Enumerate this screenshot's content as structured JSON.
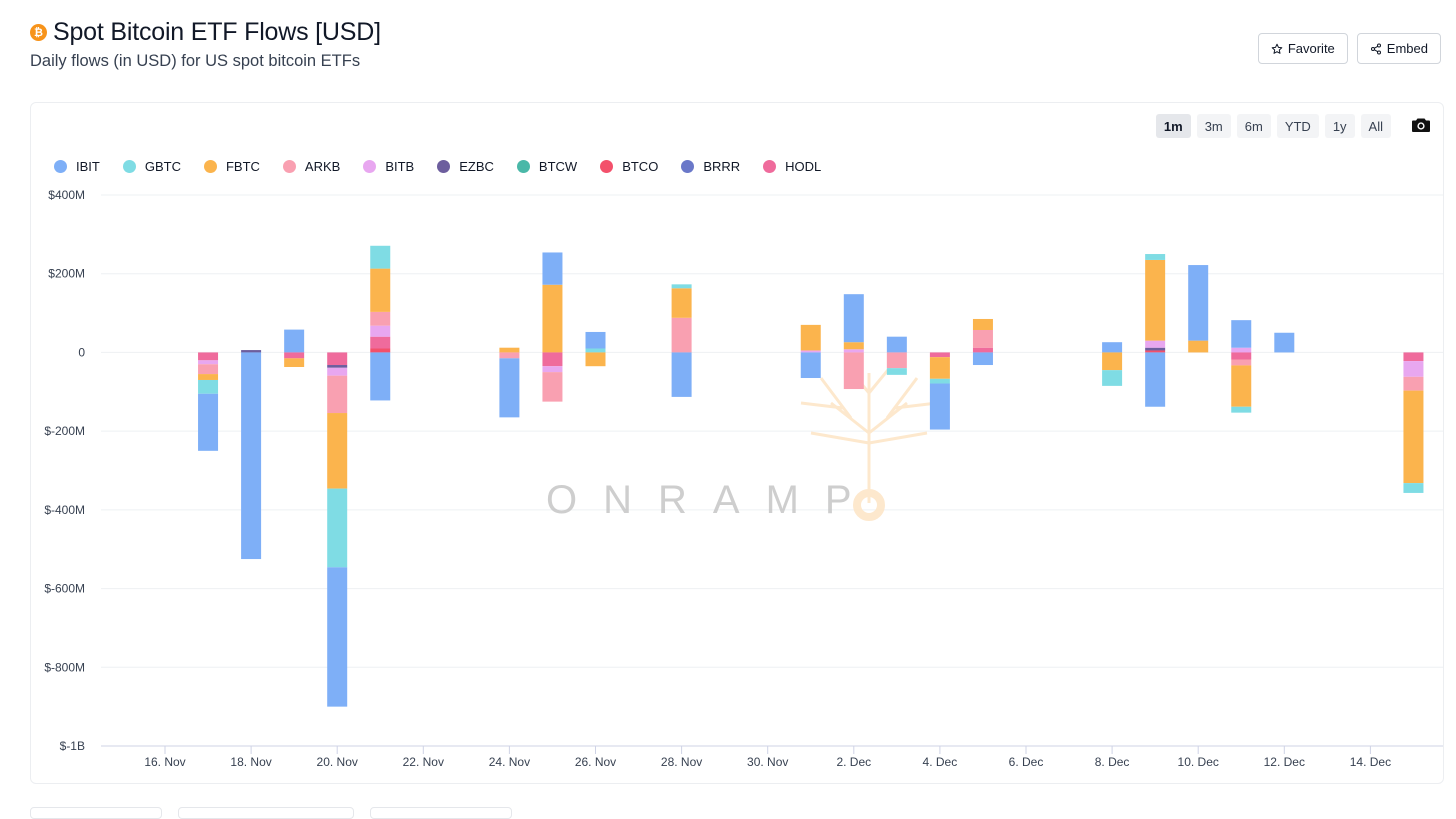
{
  "header": {
    "logo_glyph": "₿",
    "title": "Spot Bitcoin ETF Flows [USD]",
    "subtitle": "Daily flows (in USD) for US spot bitcoin ETFs"
  },
  "actions": {
    "favorite_label": "Favorite",
    "embed_label": "Embed"
  },
  "ranges": [
    "1m",
    "3m",
    "6m",
    "YTD",
    "1y",
    "All"
  ],
  "active_range": "1m",
  "watermark": "ONRAMP",
  "colors": {
    "IBIT": "#7eaff7",
    "GBTC": "#7fdce4",
    "FBTC": "#fbb44d",
    "ARKB": "#f9a0b1",
    "BITB": "#e8a7f0",
    "EZBC": "#6d5e9e",
    "BTCW": "#4ab8a8",
    "BTCO": "#f3506b",
    "BRRR": "#6a78c9",
    "HODL": "#ef6b9c"
  },
  "chart_data": {
    "type": "bar",
    "stacked": true,
    "ylim": [
      -1000,
      400
    ],
    "y_unit": "M USD",
    "yticks": [
      {
        "v": 400,
        "label": "$400M"
      },
      {
        "v": 200,
        "label": "$200M"
      },
      {
        "v": 0,
        "label": "0"
      },
      {
        "v": -200,
        "label": "$-200M"
      },
      {
        "v": -400,
        "label": "$-400M"
      },
      {
        "v": -600,
        "label": "$-600M"
      },
      {
        "v": -800,
        "label": "$-800M"
      },
      {
        "v": -1000,
        "label": "$-1B"
      }
    ],
    "xticks": [
      {
        "d": 0,
        "label": "16. Nov"
      },
      {
        "d": 2,
        "label": "18. Nov"
      },
      {
        "d": 4,
        "label": "20. Nov"
      },
      {
        "d": 6,
        "label": "22. Nov"
      },
      {
        "d": 8,
        "label": "24. Nov"
      },
      {
        "d": 10,
        "label": "26. Nov"
      },
      {
        "d": 12,
        "label": "28. Nov"
      },
      {
        "d": 14,
        "label": "30. Nov"
      },
      {
        "d": 16,
        "label": "2. Dec"
      },
      {
        "d": 18,
        "label": "4. Dec"
      },
      {
        "d": 20,
        "label": "6. Dec"
      },
      {
        "d": 22,
        "label": "8. Dec"
      },
      {
        "d": 24,
        "label": "10. Dec"
      },
      {
        "d": 26,
        "label": "12. Dec"
      },
      {
        "d": 28,
        "label": "14. Dec"
      }
    ],
    "x_start": "16. Nov",
    "x_end": "15. Dec",
    "legend": [
      "IBIT",
      "GBTC",
      "FBTC",
      "ARKB",
      "BITB",
      "EZBC",
      "BTCW",
      "BTCO",
      "BRRR",
      "HODL"
    ],
    "days": [
      {
        "date": "17. Nov",
        "d": 1,
        "flows": {
          "HODL": -20,
          "BITB": -10,
          "ARKB": -25,
          "FBTC": -15,
          "GBTC": -35,
          "IBIT": -145
        }
      },
      {
        "date": "18. Nov",
        "d": 2,
        "flows": {
          "EZBC": 6,
          "IBIT": -525
        }
      },
      {
        "date": "19. Nov",
        "d": 3,
        "flows": {
          "IBIT": 58,
          "HODL": -15,
          "FBTC": -22
        }
      },
      {
        "date": "20. Nov",
        "d": 4,
        "flows": {
          "HODL": -32,
          "EZBC": -7,
          "BITB": -20,
          "ARKB": -95,
          "FBTC": -192,
          "GBTC": -200,
          "IBIT": -354
        }
      },
      {
        "date": "21. Nov",
        "d": 5,
        "flows": {
          "BTCO": 10,
          "HODL": 30,
          "BITB": 28,
          "ARKB": 35,
          "FBTC": 110,
          "GBTC": 58,
          "IBIT": -122
        }
      },
      {
        "date": "24. Nov",
        "d": 8,
        "flows": {
          "FBTC": 12,
          "ARKB": -15,
          "IBIT": -150
        }
      },
      {
        "date": "25. Nov",
        "d": 9,
        "flows": {
          "FBTC": 172,
          "IBIT": 82,
          "HODL": -35,
          "BITB": -15,
          "ARKB": -75
        }
      },
      {
        "date": "26. Nov",
        "d": 10,
        "flows": {
          "GBTC": 10,
          "IBIT": 42,
          "FBTC": -35
        }
      },
      {
        "date": "28. Nov",
        "d": 12,
        "flows": {
          "ARKB": 88,
          "FBTC": 75,
          "GBTC": 10,
          "IBIT": -113
        }
      },
      {
        "date": "1. Dec",
        "d": 15,
        "flows": {
          "BITB": 5,
          "FBTC": 65,
          "IBIT": -65
        }
      },
      {
        "date": "2. Dec",
        "d": 16,
        "flows": {
          "BITB": 8,
          "FBTC": 18,
          "IBIT": 122,
          "ARKB": -93
        }
      },
      {
        "date": "3. Dec",
        "d": 17,
        "flows": {
          "IBIT": 40,
          "ARKB": -40,
          "GBTC": -17
        }
      },
      {
        "date": "4. Dec",
        "d": 18,
        "flows": {
          "HODL": -12,
          "FBTC": -55,
          "GBTC": -12,
          "IBIT": -117
        }
      },
      {
        "date": "5. Dec",
        "d": 19,
        "flows": {
          "HODL": 12,
          "ARKB": 45,
          "FBTC": 28,
          "IBIT": -32
        }
      },
      {
        "date": "8. Dec",
        "d": 22,
        "flows": {
          "IBIT": 26,
          "FBTC": -45,
          "GBTC": -40
        }
      },
      {
        "date": "9. Dec",
        "d": 23,
        "flows": {
          "BTCO": 5,
          "EZBC": 7,
          "BITB": 18,
          "FBTC": 205,
          "GBTC": 15,
          "IBIT": -138
        }
      },
      {
        "date": "10. Dec",
        "d": 24,
        "flows": {
          "FBTC": 30,
          "IBIT": 192
        }
      },
      {
        "date": "11. Dec",
        "d": 25,
        "flows": {
          "BITB": 12,
          "IBIT": 70,
          "HODL": -18,
          "ARKB": -15,
          "FBTC": -105,
          "GBTC": -15
        }
      },
      {
        "date": "12. Dec",
        "d": 26,
        "flows": {
          "IBIT": 50
        }
      },
      {
        "date": "15. Dec",
        "d": 29,
        "flows": {
          "HODL": -22,
          "BITB": -40,
          "ARKB": -35,
          "FBTC": -235,
          "GBTC": -25
        }
      }
    ]
  }
}
